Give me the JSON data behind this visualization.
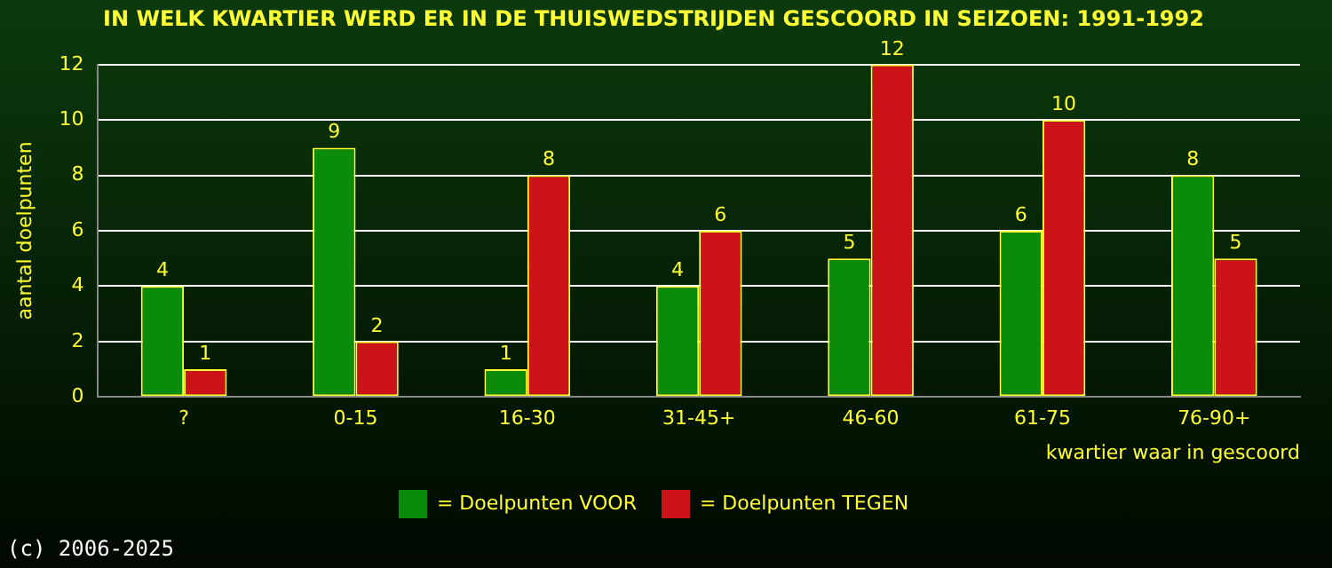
{
  "chart_data": {
    "type": "bar",
    "title": "IN WELK KWARTIER WERD ER IN DE THUISWEDSTRIJDEN GESCOORD IN SEIZOEN: 1991-1992",
    "xlabel": "kwartier waar in gescoord",
    "ylabel": "aantal doelpunten",
    "categories": [
      "?",
      "0-15",
      "16-30",
      "31-45+",
      "46-60",
      "61-75",
      "76-90+"
    ],
    "series": [
      {
        "name": "= Doelpunten VOOR",
        "color": "#0a8c0a",
        "values": [
          4,
          9,
          1,
          4,
          5,
          6,
          8
        ]
      },
      {
        "name": "= Doelpunten TEGEN",
        "color": "#cc1418",
        "values": [
          1,
          2,
          8,
          6,
          12,
          10,
          5
        ]
      }
    ],
    "ylim": [
      0,
      12
    ],
    "yticks": [
      0,
      2,
      4,
      6,
      8,
      10,
      12
    ],
    "grid": "y",
    "legend": "bottom",
    "data_labels": true,
    "annotations": [
      "(c) 2006-2025"
    ]
  }
}
